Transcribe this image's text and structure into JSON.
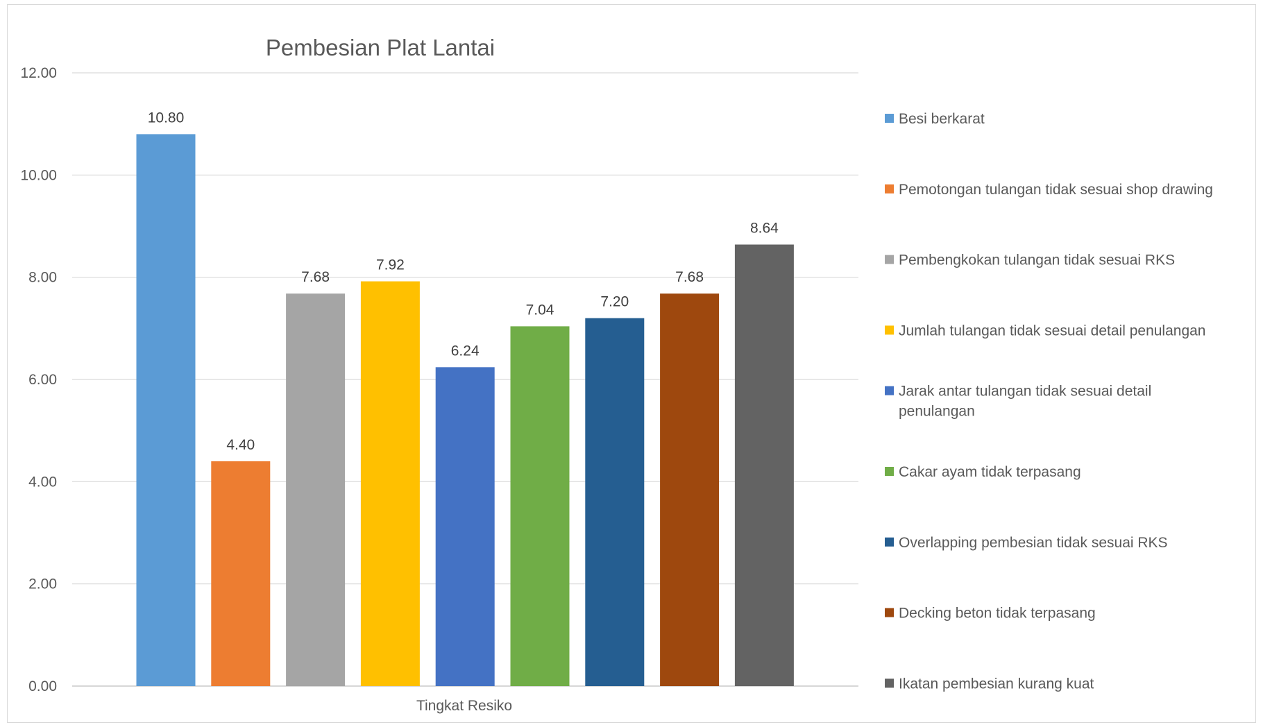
{
  "chart_data": {
    "type": "bar",
    "title": "Pembesian Plat Lantai",
    "xlabel": "Tingkat Resiko",
    "ylabel": "",
    "ylim": [
      0,
      12
    ],
    "yticks": [
      "0.00",
      "2.00",
      "4.00",
      "6.00",
      "8.00",
      "10.00",
      "12.00"
    ],
    "grid": true,
    "legend_position": "right",
    "categories": [
      "Tingkat Resiko"
    ],
    "series": [
      {
        "name": "Besi berkarat",
        "values": [
          10.8
        ],
        "label": "10.80",
        "color": "#5B9BD5"
      },
      {
        "name": "Pemotongan tulangan tidak sesuai shop drawing",
        "values": [
          4.4
        ],
        "label": "4.40",
        "color": "#ED7D31"
      },
      {
        "name": "Pembengkokan tulangan tidak sesuai RKS",
        "values": [
          7.68
        ],
        "label": "7.68",
        "color": "#A5A5A5"
      },
      {
        "name": "Jumlah tulangan tidak sesuai detail penulangan",
        "values": [
          7.92
        ],
        "label": "7.92",
        "color": "#FFC000"
      },
      {
        "name": "Jarak antar tulangan tidak sesuai detail penulangan",
        "values": [
          6.24
        ],
        "label": "6.24",
        "color": "#4472C4"
      },
      {
        "name": "Cakar ayam tidak terpasang",
        "values": [
          7.04
        ],
        "label": "7.04",
        "color": "#70AD47"
      },
      {
        "name": "Overlapping pembesian tidak sesuai RKS",
        "values": [
          7.2
        ],
        "label": "7.20",
        "color": "#255E91"
      },
      {
        "name": "Decking beton tidak terpasang",
        "values": [
          7.68
        ],
        "label": "7.68",
        "color": "#9E480E"
      },
      {
        "name": "Ikatan pembesian kurang kuat",
        "values": [
          8.64
        ],
        "label": "8.64",
        "color": "#636363"
      }
    ]
  }
}
